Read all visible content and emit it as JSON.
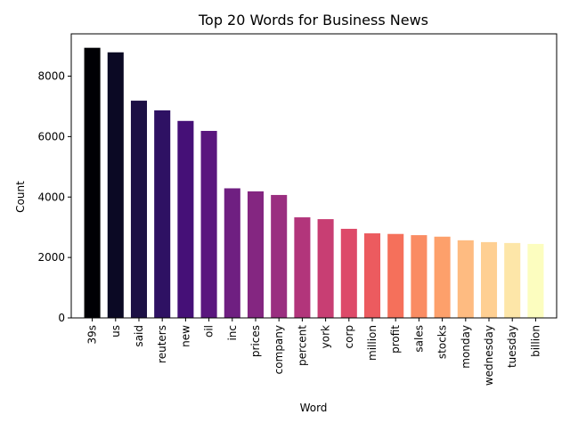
{
  "chart_data": {
    "type": "bar",
    "title": "Top 20 Words for Business News",
    "xlabel": "Word",
    "ylabel": "Count",
    "categories": [
      "39s",
      "us",
      "said",
      "reuters",
      "new",
      "oil",
      "inc",
      "prices",
      "company",
      "percent",
      "york",
      "corp",
      "million",
      "profit",
      "sales",
      "stocks",
      "monday",
      "wednesday",
      "tuesday",
      "billion"
    ],
    "values": [
      8950,
      8800,
      7200,
      6880,
      6530,
      6200,
      4300,
      4200,
      4080,
      3340,
      3280,
      2960,
      2810,
      2790,
      2750,
      2700,
      2580,
      2520,
      2490,
      2460
    ],
    "ylim": [
      0,
      9400
    ],
    "yticks": [
      0,
      2000,
      4000,
      6000,
      8000
    ],
    "grid": false,
    "legend": "none",
    "colors": [
      "#000004",
      "#0b0924",
      "#1c1044",
      "#2e1163",
      "#451077",
      "#5a167e",
      "#6f1f81",
      "#842681",
      "#9a2e80",
      "#b2357b",
      "#c83e73",
      "#dd4a69",
      "#ec5b5f",
      "#f5705b",
      "#fa8c63",
      "#fda06b",
      "#febb81",
      "#fecf92",
      "#fde6a8",
      "#fcfdbf"
    ]
  }
}
